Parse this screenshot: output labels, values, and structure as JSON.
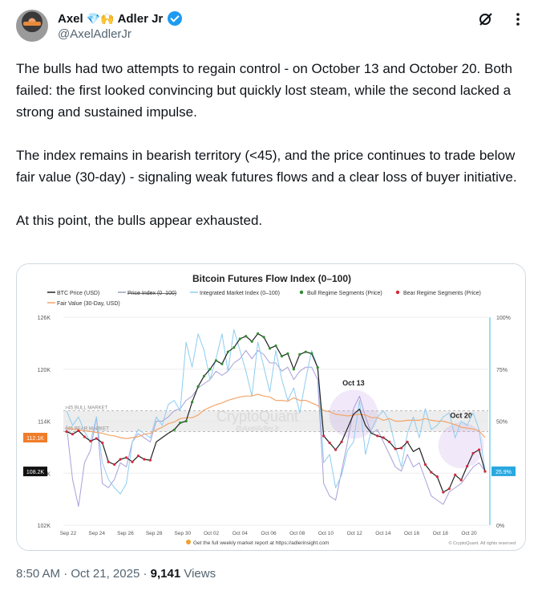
{
  "author": {
    "name_first": "Axel",
    "name_emojis": "💎🙌",
    "name_last": "Adler Jr",
    "handle": "@AxelAdlerJr"
  },
  "header_icons": [
    "grok-icon",
    "more-icon"
  ],
  "tweet": {
    "paragraphs": [
      "The bulls had two attempts to regain control - on October 13 and October 20. Both failed: the first looked convincing but quickly lost steam, while the second lacked a strong and sustained impulse.",
      "The index remains in bearish territory (<45), and the price continues to trade below fair value (30-day) - signaling weak futures flows and a clear loss of buyer initiative.",
      "At this point, the bulls appear exhausted."
    ]
  },
  "meta": {
    "time": "8:50 AM",
    "separator": "·",
    "date": "Oct 21, 2025",
    "views_count": "9,141",
    "views_label": "Views"
  },
  "chart_data": {
    "type": "line",
    "title": "Bitcoin Futures Flow Index (0–100)",
    "legend": [
      {
        "label": "BTC Price (USD)",
        "color": "#222222"
      },
      {
        "label": "Price Index (0–100)",
        "color": "#9aa4b8"
      },
      {
        "label": "Integrated Market Index (0–100)",
        "color": "#8ecdf0"
      },
      {
        "label": "Bull Regime Segments (Price)",
        "color": "#2e8b2e"
      },
      {
        "label": "Bear Regime Segments (Price)",
        "color": "#d6283c"
      },
      {
        "label": "Fair Value (30-Day, USD)",
        "color": "#f3a56b"
      }
    ],
    "y_left_ticks": [
      "126K",
      "120K",
      "114K",
      "108K",
      "102K"
    ],
    "y_left_range": [
      102000,
      126000
    ],
    "y_right_ticks": [
      "100%",
      "75%",
      "50%",
      "25%",
      "0%"
    ],
    "x_ticks": [
      "Sep 22",
      "Sep 24",
      "Sep 26",
      "Sep 28",
      "Sep 30",
      "Oct 02",
      "Oct 04",
      "Oct 06",
      "Oct 08",
      "Oct 10",
      "Oct 12",
      "Oct 14",
      "Oct 16",
      "Oct 18",
      "Oct 20"
    ],
    "badges": {
      "fair_value": "112.1K",
      "price": "108.2K",
      "index": "25.9%"
    },
    "zone_labels": {
      "bull": ">45 BULL MARKET",
      "bear": "<45 BEAR MARKET"
    },
    "annotations": [
      "Oct 13",
      "Oct 20"
    ],
    "watermark": "CryptoQuant",
    "watermark_sub": "@AxelAdlerJr",
    "footer": "Get the full weekly market report at https://adlerinsight.com",
    "copyright": "© CryptoQuant. All rights reserved",
    "btc_price": [
      112.8,
      112.5,
      112.9,
      112.2,
      111.7,
      112.0,
      111.5,
      109.3,
      109.0,
      109.6,
      109.8,
      109.3,
      110.0,
      109.6,
      109.5,
      111.6,
      112.1,
      112.6,
      113.0,
      113.8,
      114.0,
      116.2,
      118.0,
      119.2,
      120.0,
      121.0,
      120.6,
      122.0,
      122.5,
      123.5,
      123.8,
      123.2,
      124.1,
      123.7,
      122.4,
      122.7,
      121.5,
      121.8,
      120.0,
      121.7,
      122.0,
      121.8,
      120.2,
      112.3,
      111.5,
      110.7,
      111.6,
      113.2,
      114.8,
      115.4,
      113.5,
      112.6,
      112.3,
      112.1,
      111.6,
      110.8,
      110.9,
      111.6,
      110.5,
      110.9,
      109.0,
      108.1,
      107.6,
      105.8,
      106.2,
      107.8,
      107.2,
      108.8,
      110.3,
      110.7,
      108.2
    ],
    "fair_value": [
      113.2,
      113.1,
      113.0,
      112.9,
      112.8,
      112.7,
      112.6,
      112.4,
      112.3,
      112.1,
      112.0,
      112.1,
      112.2,
      112.5,
      112.6,
      113.0,
      113.3,
      113.7,
      113.9,
      114.3,
      114.4,
      114.4,
      114.7,
      115.3,
      115.6,
      115.9,
      116.1,
      116.4,
      116.6,
      116.8,
      116.9,
      116.9,
      117.1,
      116.9,
      116.8,
      116.4,
      116.4,
      116.3,
      116.7,
      116.4,
      116.4,
      116.1,
      115.8,
      115.2,
      115.1,
      114.8,
      114.7,
      114.6,
      114.7,
      114.8,
      114.7,
      114.4,
      114.4,
      114.1,
      114.3,
      114.0,
      114.0,
      114.1,
      114.1,
      114.1,
      114.3,
      114.1,
      114.0,
      114.0,
      113.8,
      113.6,
      113.3,
      113.2,
      113.1,
      112.9,
      112.1
    ],
    "market_index": [
      55,
      48,
      52,
      45,
      40,
      52,
      30,
      22,
      18,
      15,
      20,
      40,
      46,
      44,
      42,
      52,
      48,
      58,
      60,
      55,
      88,
      76,
      92,
      84,
      70,
      80,
      92,
      74,
      94,
      84,
      74,
      62,
      88,
      76,
      64,
      84,
      70,
      60,
      66,
      54,
      70,
      84,
      76,
      30,
      34,
      18,
      24,
      36,
      40,
      60,
      34,
      46,
      52,
      55,
      50,
      38,
      28,
      44,
      52,
      42,
      56,
      46,
      48,
      52,
      54,
      42,
      50,
      48,
      54,
      46,
      26
    ],
    "price_index": [
      48,
      22,
      9,
      30,
      36,
      52,
      20,
      18,
      22,
      30,
      28,
      40,
      44,
      42,
      40,
      50,
      50,
      52,
      55,
      56,
      60,
      62,
      66,
      68,
      70,
      74,
      72,
      74,
      78,
      80,
      84,
      80,
      84,
      82,
      78,
      78,
      74,
      76,
      70,
      74,
      76,
      76,
      70,
      20,
      14,
      12,
      26,
      40,
      56,
      62,
      52,
      44,
      46,
      40,
      34,
      28,
      26,
      34,
      28,
      30,
      22,
      14,
      12,
      10,
      16,
      18,
      20,
      24,
      28,
      30,
      25.9
    ]
  }
}
